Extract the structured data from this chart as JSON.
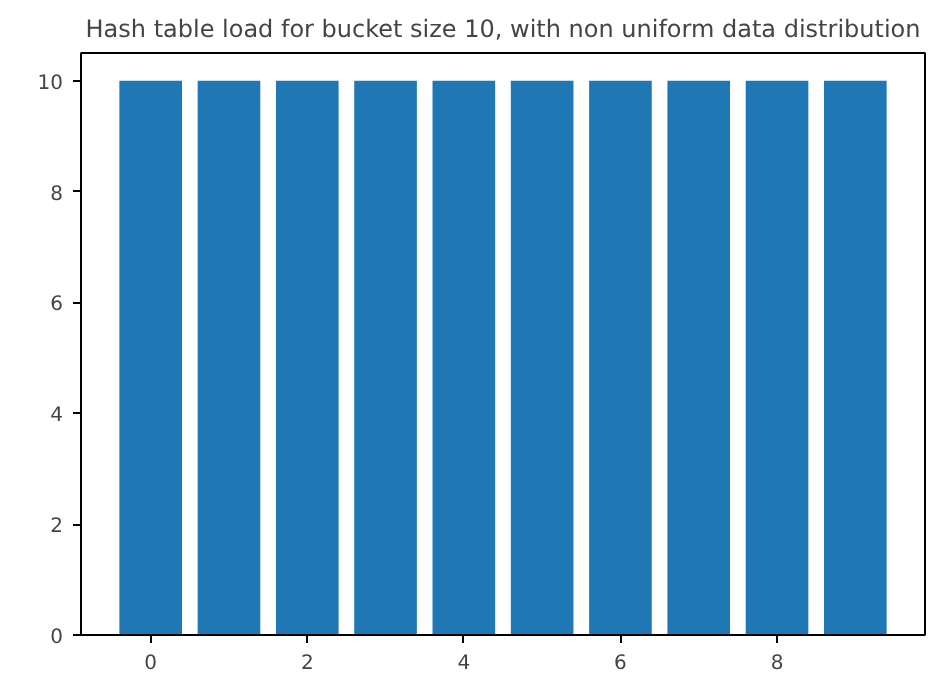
{
  "chart_data": {
    "type": "bar",
    "title": "Hash table load for bucket size 10, with non uniform data distribution",
    "x": [
      0,
      1,
      2,
      3,
      4,
      5,
      6,
      7,
      8,
      9
    ],
    "values": [
      10,
      10,
      10,
      10,
      10,
      10,
      10,
      10,
      10,
      10
    ],
    "color": "#1f77b4",
    "xlim": [
      -0.89,
      9.89
    ],
    "xticks": [
      0,
      2,
      4,
      6,
      8
    ],
    "ylim": [
      0,
      10.5
    ],
    "yticks": [
      0,
      2,
      4,
      6,
      8,
      10
    ],
    "grid": false
  }
}
